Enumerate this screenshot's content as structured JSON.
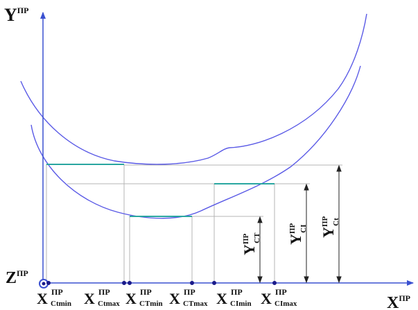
{
  "colors": {
    "curve": "#5a5ae6",
    "axis": "#3a50d0",
    "segment": "#2aa6a0",
    "guide": "#b4b4b4",
    "dim": "#222222",
    "text": "#111111"
  },
  "axes": {
    "y": {
      "main": "Y",
      "sup": "ПР"
    },
    "z": {
      "main": "Z",
      "sup": "ПР"
    },
    "x": {
      "main": "X",
      "sup": "ПР"
    }
  },
  "x_labels": [
    {
      "main": "X",
      "sup": "ПР",
      "sub": "Ctmin"
    },
    {
      "main": "X",
      "sup": "ПР",
      "sub": "Ctmax"
    },
    {
      "main": "X",
      "sup": "ПР",
      "sub": "CTmin"
    },
    {
      "main": "X",
      "sup": "ПР",
      "sub": "CTmax"
    },
    {
      "main": "X",
      "sup": "ПР",
      "sub": "CImin"
    },
    {
      "main": "X",
      "sup": "ПР",
      "sub": "CImax"
    }
  ],
  "y_labels": [
    {
      "main": "Y",
      "sup": "ПР",
      "sub": "CT"
    },
    {
      "main": "Y",
      "sup": "ПР",
      "sub": "CI"
    },
    {
      "main": "Y",
      "sup": "ПР",
      "sub": "Ct"
    }
  ]
}
